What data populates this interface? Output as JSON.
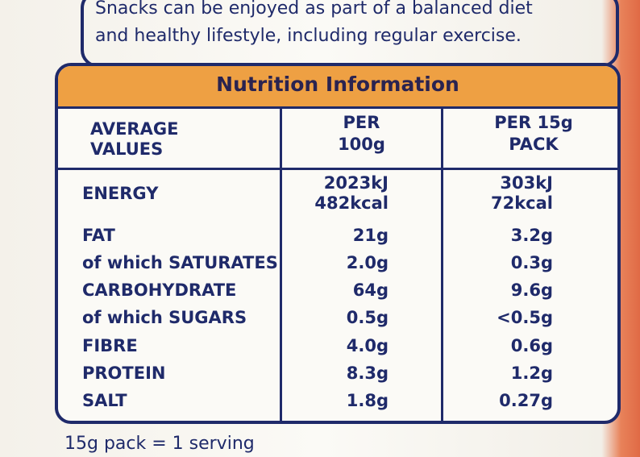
{
  "intro": {
    "lines": [
      "Snacks can be enjoyed as part of a balanced diet",
      "and healthy lifestyle, including regular exercise."
    ]
  },
  "table": {
    "title": "Nutrition Information",
    "headers": [
      [
        "AVERAGE",
        "VALUES"
      ],
      [
        "PER",
        "100g"
      ],
      [
        "PER 15g",
        "PACK"
      ]
    ],
    "rows": [
      [
        [
          "ENERGY"
        ],
        [
          "2023kJ",
          "482kcal"
        ],
        [
          "303kJ",
          "72kcal"
        ]
      ],
      [
        [
          "FAT"
        ],
        [
          "21g"
        ],
        [
          "3.2g"
        ]
      ],
      [
        [
          "of which SATURATES"
        ],
        [
          "2.0g"
        ],
        [
          "0.3g"
        ]
      ],
      [
        [
          "CARBOHYDRATE"
        ],
        [
          "64g"
        ],
        [
          "9.6g"
        ]
      ],
      [
        [
          "of which SUGARS"
        ],
        [
          "0.5g"
        ],
        [
          "<0.5g"
        ]
      ],
      [
        [
          "FIBRE"
        ],
        [
          "4.0g"
        ],
        [
          "0.6g"
        ]
      ],
      [
        [
          "PROTEIN"
        ],
        [
          "8.3g"
        ],
        [
          "1.2g"
        ]
      ],
      [
        [
          "SALT"
        ],
        [
          "1.8g"
        ],
        [
          "0.27g"
        ]
      ]
    ]
  },
  "footer": "15g pack = 1 serving"
}
